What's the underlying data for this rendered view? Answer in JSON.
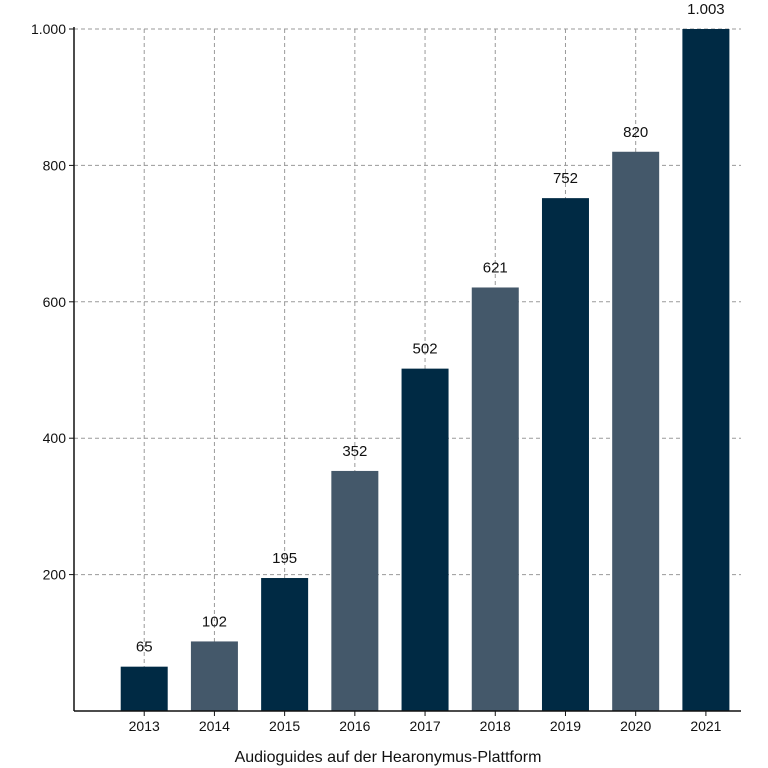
{
  "chart_data": {
    "type": "bar",
    "title": "",
    "xlabel": "Audioguides auf der Hearonymus-Plattform",
    "ylabel": "",
    "categories": [
      "2013",
      "2014",
      "2015",
      "2016",
      "2017",
      "2018",
      "2019",
      "2020",
      "2021"
    ],
    "values": [
      65,
      102,
      195,
      352,
      502,
      621,
      752,
      820,
      1003
    ],
    "value_labels": [
      "65",
      "102",
      "195",
      "352",
      "502",
      "621",
      "752",
      "820",
      "1.003"
    ],
    "ylim": [
      0,
      1000
    ],
    "yticks": [
      200,
      400,
      600,
      800,
      1000
    ],
    "ytick_labels": [
      "200",
      "400",
      "600",
      "800",
      "1.000"
    ],
    "grid": true,
    "legend": "none",
    "colors": [
      "#002a44",
      "#44586a"
    ]
  }
}
